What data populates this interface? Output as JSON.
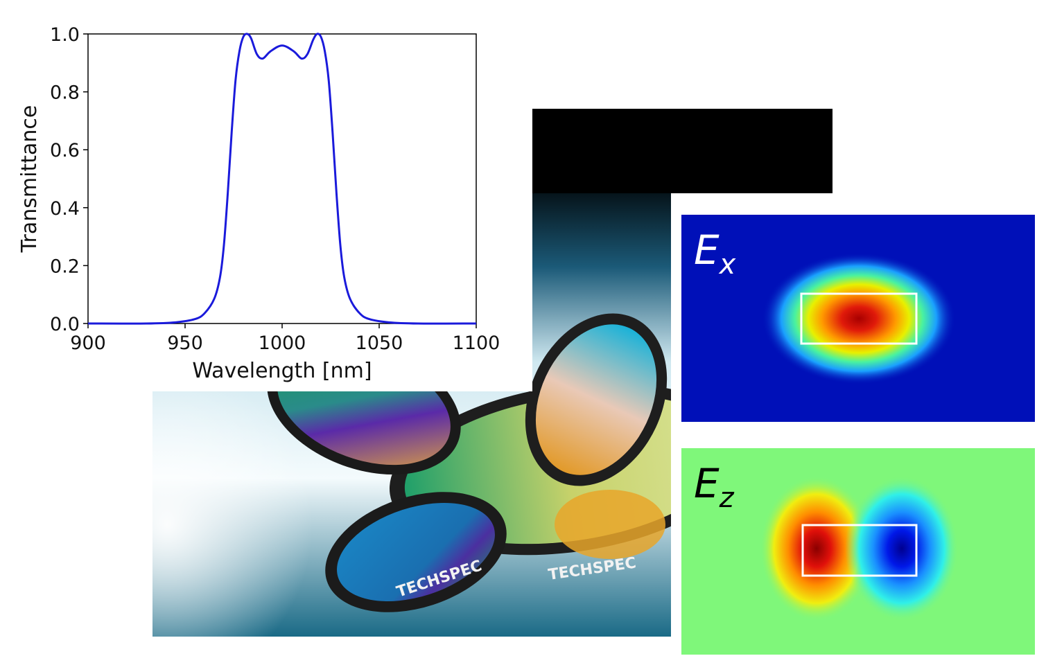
{
  "colors": {
    "curve": "#1a1adb",
    "field_background_ex": "#0010b8",
    "field_background_ez": "#7ff77a",
    "waveguide_outline": "#ffffff"
  },
  "chart_data": {
    "type": "line",
    "title": "",
    "xlabel": "Wavelength [nm]",
    "ylabel": "Transmittance",
    "xlim": [
      900,
      1100
    ],
    "ylim": [
      0.0,
      1.0
    ],
    "xticks": [
      "900",
      "950",
      "1000",
      "1050",
      "1100"
    ],
    "yticks": [
      "0.0",
      "0.2",
      "0.4",
      "0.6",
      "0.8",
      "1.0"
    ],
    "grid": false,
    "series": [
      {
        "x": [
          900,
          930,
          945,
          955,
          960,
          965,
          968,
          970,
          972,
          974,
          976,
          978,
          980,
          982,
          984,
          987,
          990,
          994,
          1000,
          1006,
          1010,
          1013,
          1016,
          1018,
          1020,
          1022,
          1024,
          1026,
          1028,
          1030,
          1032,
          1035,
          1040,
          1045,
          1055,
          1070,
          1100
        ],
        "y": [
          0.0,
          0.0,
          0.004,
          0.015,
          0.035,
          0.085,
          0.16,
          0.27,
          0.45,
          0.66,
          0.84,
          0.94,
          0.99,
          1.0,
          0.985,
          0.93,
          0.915,
          0.94,
          0.96,
          0.94,
          0.915,
          0.93,
          0.98,
          1.0,
          0.99,
          0.94,
          0.84,
          0.66,
          0.45,
          0.27,
          0.16,
          0.085,
          0.035,
          0.015,
          0.004,
          0.0,
          0.0
        ]
      }
    ]
  },
  "photo": {
    "brand_text_1": "TECHSPEC",
    "brand_text_2": "TECHSPEC"
  },
  "field_maps": {
    "ex": {
      "symbol": "E",
      "subscript": "x"
    },
    "ez": {
      "symbol": "E",
      "subscript": "z"
    }
  }
}
